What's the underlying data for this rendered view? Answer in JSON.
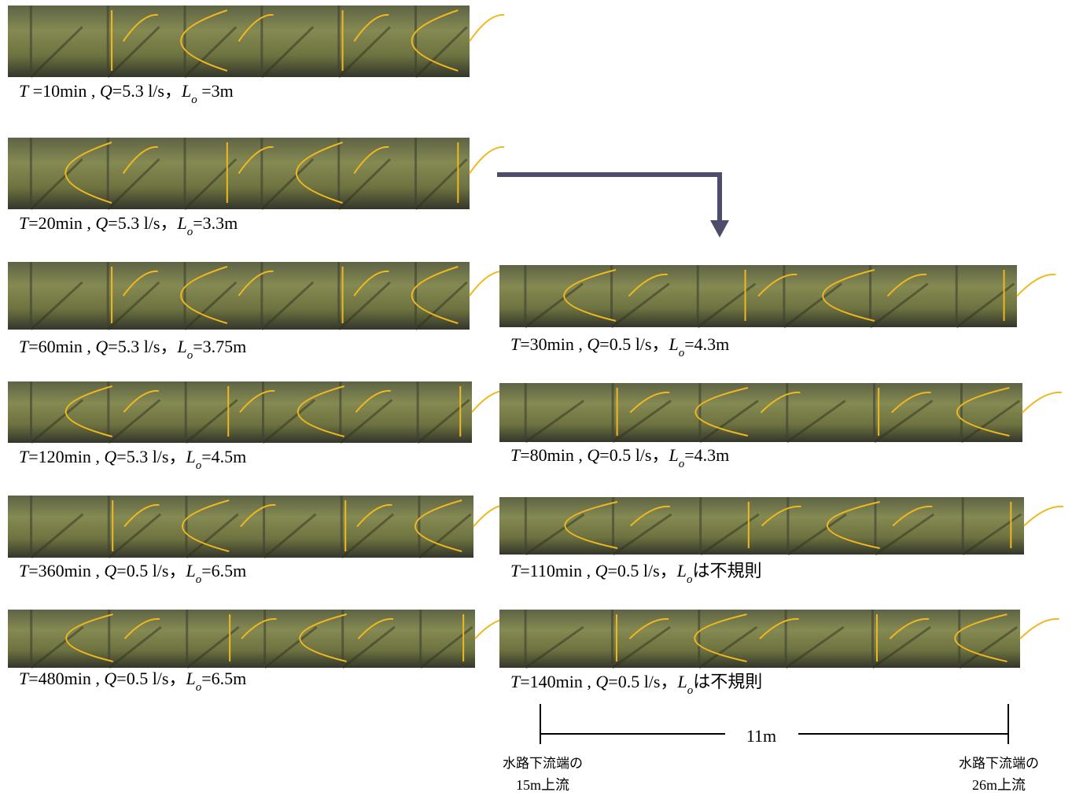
{
  "left_panels": [
    {
      "caption": [
        "T",
        " =10min , ",
        "Q",
        "=5.3 l/s",
        "，",
        "L",
        "o",
        " =3m"
      ]
    },
    {
      "caption": [
        "T",
        "=20min , ",
        "Q",
        "=5.3 l/s",
        "，",
        "L",
        "o",
        "=3.3m"
      ]
    },
    {
      "caption": [
        "T",
        "=60min , ",
        "Q",
        "=5.3 l/s",
        "，",
        "L",
        "o",
        "=3.75m"
      ]
    },
    {
      "caption": [
        "T",
        "=120min , ",
        "Q",
        "=5.3 l/s",
        "，",
        "L",
        "o",
        "=4.5m"
      ]
    },
    {
      "caption": [
        "T",
        "=360min , ",
        "Q",
        "=0.5 l/s",
        "，",
        "L",
        "o",
        "=6.5m"
      ]
    },
    {
      "caption": [
        "T",
        "=480min , ",
        "Q",
        "=0.5 l/s",
        "，",
        "L",
        "o",
        "=6.5m"
      ]
    }
  ],
  "right_panels": [
    {
      "caption": [
        "T",
        "=30min , ",
        "Q",
        "=0.5 l/s",
        "，",
        "L",
        "o",
        "=4.3m"
      ]
    },
    {
      "caption": [
        "T",
        "=80min , ",
        "Q",
        "=0.5 l/s",
        "，",
        "L",
        "o",
        "=4.3m"
      ]
    },
    {
      "caption": [
        "T",
        "=110min , ",
        "Q",
        "=0.5 l/s",
        "，",
        "L",
        "o",
        "は不規則"
      ]
    },
    {
      "caption": [
        "T",
        "=140min , ",
        "Q",
        "=0.5 l/s",
        "，",
        "L",
        "o",
        "は不規則"
      ]
    }
  ],
  "scale": {
    "length": "11m",
    "start": [
      "水路下流端の",
      "15m上流"
    ],
    "end": [
      "水路下流端の",
      "26m上流"
    ]
  }
}
